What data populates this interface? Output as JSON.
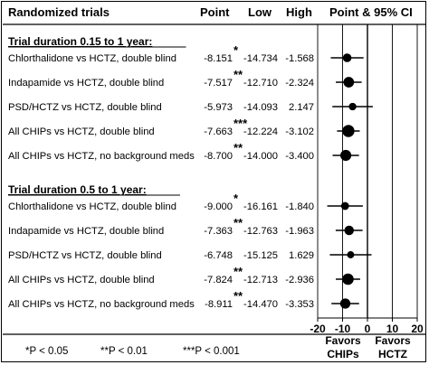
{
  "chart_data": {
    "type": "forest",
    "headers": {
      "label": "Randomized trials",
      "point": "Point",
      "low": "Low",
      "high": "High",
      "ci": "Point & 95% CI"
    },
    "groups": [
      {
        "title": "Trial duration 0.15 to 1 year:",
        "rows": [
          {
            "label": "Chlorthalidone vs HCTZ, double blind",
            "point": -8.151,
            "point_text": "-8.151",
            "low": -14.734,
            "low_text": "-14.734",
            "high": -1.568,
            "high_text": "-1.568",
            "stars": "*",
            "weight": 0.55
          },
          {
            "label": "Indapamide vs HCTZ, double blind",
            "point": -7.517,
            "point_text": "-7.517",
            "low": -12.71,
            "low_text": "-12.710",
            "high": -2.324,
            "high_text": "-2.324",
            "stars": "**",
            "weight": 0.8
          },
          {
            "label": "PSD/HCTZ vs HCTZ, double blind",
            "point": -5.973,
            "point_text": "-5.973",
            "low": -14.093,
            "low_text": "-14.093",
            "high": 2.147,
            "high_text": "2.147",
            "stars": "",
            "weight": 0.4
          },
          {
            "label": "All CHIPs vs HCTZ, double blind",
            "point": -7.663,
            "point_text": "-7.663",
            "low": -12.224,
            "low_text": "-12.224",
            "high": -3.102,
            "high_text": "-3.102",
            "stars": "***",
            "weight": 1.0
          },
          {
            "label": "All CHIPs vs HCTZ, no background meds",
            "point": -8.7,
            "point_text": "-8.700",
            "low": -14.0,
            "low_text": "-14.000",
            "high": -3.4,
            "high_text": "-3.400",
            "stars": "**",
            "weight": 0.85
          }
        ]
      },
      {
        "title": "Trial duration 0.5 to 1 year:",
        "rows": [
          {
            "label": "Chlorthalidone vs HCTZ, double blind",
            "point": -9.0,
            "point_text": "-9.000",
            "low": -16.161,
            "low_text": "-16.161",
            "high": -1.84,
            "high_text": "-1.840",
            "stars": "*",
            "weight": 0.45
          },
          {
            "label": "Indapamide vs HCTZ, double blind",
            "point": -7.363,
            "point_text": "-7.363",
            "low": -12.763,
            "low_text": "-12.763",
            "high": -1.963,
            "high_text": "-1.963",
            "stars": "**",
            "weight": 0.65
          },
          {
            "label": "PSD/HCTZ vs HCTZ, double blind",
            "point": -6.748,
            "point_text": "-6.748",
            "low": -15.125,
            "low_text": "-15.125",
            "high": 1.629,
            "high_text": "1.629",
            "stars": "",
            "weight": 0.35
          },
          {
            "label": "All CHIPs vs HCTZ, double blind",
            "point": -7.824,
            "point_text": "-7.824",
            "low": -12.713,
            "low_text": "-12.713",
            "high": -2.936,
            "high_text": "-2.936",
            "stars": "**",
            "weight": 0.9
          },
          {
            "label": "All CHIPs vs HCTZ, no background meds",
            "point": -8.911,
            "point_text": "-8.911",
            "low": -14.47,
            "low_text": "-14.470",
            "high": -3.353,
            "high_text": "-3.353",
            "stars": "**",
            "weight": 0.75
          }
        ]
      }
    ],
    "x_axis": {
      "range": [
        -20,
        20
      ],
      "ticks": [
        -20,
        -10,
        0,
        10,
        20
      ],
      "tick_labels": [
        "-20",
        "-10",
        "0",
        "10",
        "20"
      ],
      "reference_line": 0,
      "grid": true
    },
    "favors": {
      "left_line1": "Favors",
      "left_line2": "CHIPs",
      "right_line1": "Favors",
      "right_line2": "HCTZ"
    },
    "footnotes": [
      "*P < 0.05",
      "**P < 0.01",
      "***P < 0.001"
    ]
  }
}
